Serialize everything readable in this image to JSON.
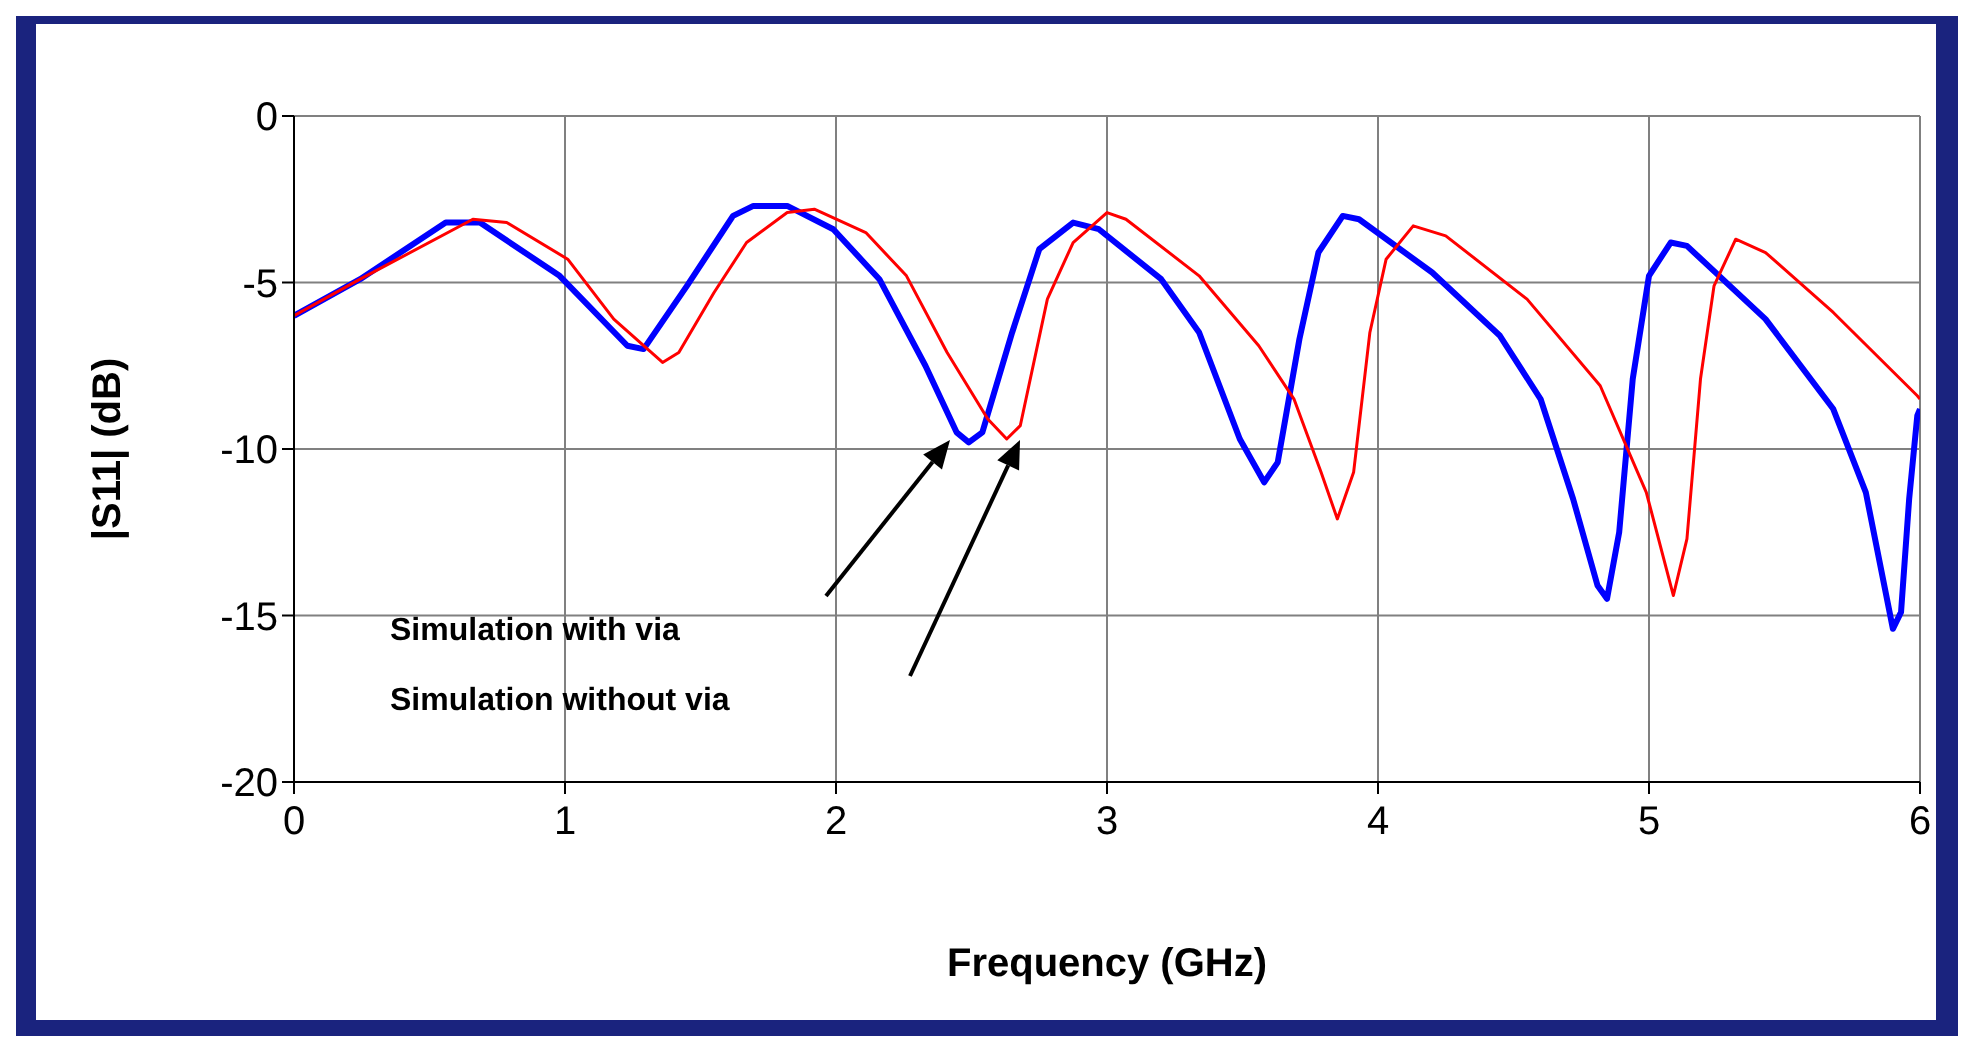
{
  "chart_data": {
    "type": "line",
    "xlabel": "Frequency (GHz)",
    "ylabel": "|S11| (dB)",
    "xlim": [
      0,
      6
    ],
    "xticks": [
      0,
      1,
      2,
      3,
      4,
      5,
      6
    ],
    "ylim": [
      -20,
      0
    ],
    "yticks": [
      -20,
      -15,
      -10,
      -5,
      0
    ],
    "grid": true,
    "marker": "none",
    "line_style": "solid",
    "series": [
      {
        "color": "#0000ff",
        "x": [
          0,
          0.244,
          0.56,
          0.686,
          0.98,
          1.23,
          1.29,
          1.45,
          1.62,
          1.695,
          1.82,
          1.99,
          2.16,
          2.33,
          2.445,
          2.49,
          2.54,
          2.65,
          2.75,
          2.875,
          2.97,
          3.2,
          3.34,
          3.49,
          3.58,
          3.63,
          3.71,
          3.78,
          3.87,
          3.93,
          4.2,
          4.45,
          4.6,
          4.72,
          4.81,
          4.845,
          4.89,
          4.94,
          5.0,
          5.08,
          5.14,
          5.43,
          5.68,
          5.8,
          5.9,
          5.93,
          5.96,
          5.99,
          6
        ],
        "values": [
          -6.0,
          -4.9,
          -3.2,
          -3.2,
          -4.8,
          -6.9,
          -7.0,
          -5.1,
          -3.0,
          -2.7,
          -2.7,
          -3.4,
          -4.9,
          -7.5,
          -9.5,
          -9.8,
          -9.5,
          -6.5,
          -4.0,
          -3.2,
          -3.4,
          -4.9,
          -6.5,
          -9.7,
          -11.0,
          -10.4,
          -6.7,
          -4.1,
          -3.0,
          -3.1,
          -4.7,
          -6.6,
          -8.5,
          -11.5,
          -14.1,
          -14.5,
          -12.5,
          -7.9,
          -4.8,
          -3.8,
          -3.9,
          -6.1,
          -8.8,
          -11.3,
          -15.4,
          -14.9,
          -11.5,
          -9.0,
          -8.8
        ]
      },
      {
        "color": "#ff0000",
        "x": [
          0,
          0.244,
          0.66,
          0.785,
          1.01,
          1.18,
          1.36,
          1.42,
          1.55,
          1.67,
          1.82,
          1.92,
          2.11,
          2.26,
          2.41,
          2.56,
          2.63,
          2.68,
          2.78,
          2.875,
          3.0,
          3.07,
          3.34,
          3.56,
          3.69,
          3.79,
          3.85,
          3.91,
          3.97,
          4.03,
          4.13,
          4.25,
          4.55,
          4.82,
          4.99,
          5.09,
          5.14,
          5.19,
          5.24,
          5.32,
          5.43,
          5.68,
          5.99,
          6
        ],
        "values": [
          -6.0,
          -4.9,
          -3.1,
          -3.2,
          -4.3,
          -6.1,
          -7.4,
          -7.1,
          -5.3,
          -3.8,
          -2.9,
          -2.8,
          -3.5,
          -4.8,
          -7.1,
          -9.1,
          -9.7,
          -9.3,
          -5.5,
          -3.8,
          -2.9,
          -3.1,
          -4.8,
          -6.9,
          -8.5,
          -10.7,
          -12.1,
          -10.7,
          -6.5,
          -4.3,
          -3.3,
          -3.6,
          -5.5,
          -8.1,
          -11.3,
          -14.4,
          -12.7,
          -7.9,
          -5.1,
          -3.7,
          -4.1,
          -5.9,
          -8.4,
          -8.5
        ]
      }
    ],
    "annotations": [
      "Simulation with via",
      "Simulation without via"
    ]
  }
}
